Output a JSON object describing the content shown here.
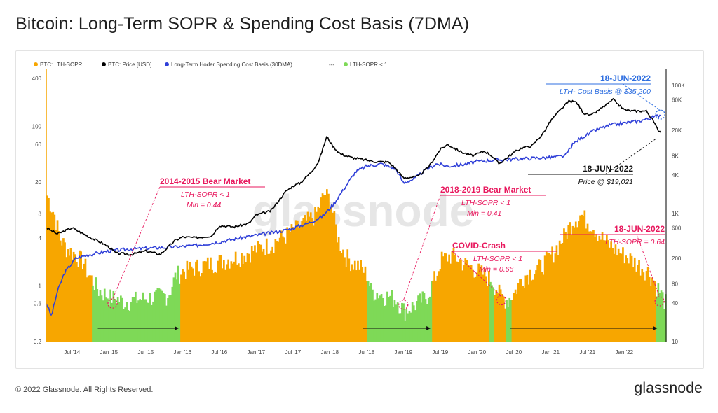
{
  "title": "Bitcoin: Long-Term SOPR & Spending Cost Basis (7DMA)",
  "footer": {
    "copyright": "© 2022 Glassnode. All Rights Reserved.",
    "logo": "glassnode"
  },
  "watermark": "glassnode",
  "colors": {
    "sopr": "#f7a600",
    "sopr_below_one": "#7ed957",
    "price": "#000000",
    "cost_basis": "#2f3fd8",
    "annotation_red": "#e8175d",
    "annotation_blue": "#2f6fe0"
  },
  "chart_data": {
    "type": "area",
    "title": "Bitcoin: Long-Term SOPR & Spending Cost Basis (7DMA)",
    "legend": {
      "placement": "top-left",
      "items": [
        {
          "label": "BTC: LTH-SOPR",
          "color": "#f7a600",
          "marker": "dot"
        },
        {
          "label": "BTC: Price [USD]",
          "color": "#000000",
          "marker": "dot"
        },
        {
          "label": "Long-Term Hoder Spending Cost Basis (30DMA)",
          "color": "#2f3fd8",
          "marker": "dot"
        },
        {
          "label": "---",
          "color": "#555555",
          "marker": "none"
        },
        {
          "label": "LTH-SOPR < 1",
          "color": "#7ed957",
          "marker": "dot"
        }
      ]
    },
    "x_ticks": [
      "Jul '14",
      "Jan '15",
      "Jul '15",
      "Jan '16",
      "Jul '16",
      "Jan '17",
      "Jul '17",
      "Jan '18",
      "Jul '18",
      "Jan '19",
      "Jul '19",
      "Jan '20",
      "Jul '20",
      "Jan '21",
      "Jul '21",
      "Jan '22"
    ],
    "x_range": [
      2014.15,
      2022.55
    ],
    "left_axis": {
      "scale": "log",
      "range": [
        0.2,
        500
      ],
      "ticks": [
        0.2,
        0.6,
        1,
        4,
        8,
        20,
        60,
        100,
        400
      ]
    },
    "right_axis": {
      "scale": "log",
      "range": [
        10,
        170000
      ],
      "ticks": [
        "10",
        "40",
        "80",
        "200",
        "600",
        "1K",
        "4K",
        "8K",
        "20K",
        "60K",
        "100K"
      ]
    },
    "grid": false,
    "series": [
      {
        "name": "BTC: LTH-SOPR",
        "type": "area",
        "axis": "left",
        "x": [
          2014.15,
          2014.25,
          2014.33,
          2014.42,
          2014.55,
          2014.65,
          2014.7,
          2014.85,
          2015.0,
          2015.2,
          2015.4,
          2015.6,
          2015.8,
          2015.9,
          2016.0,
          2016.2,
          2016.4,
          2016.6,
          2016.8,
          2017.0,
          2017.2,
          2017.4,
          2017.6,
          2017.8,
          2017.92,
          2018.0,
          2018.1,
          2018.2,
          2018.3,
          2018.4,
          2018.5,
          2018.55,
          2018.7,
          2018.9,
          2019.0,
          2019.15,
          2019.3,
          2019.45,
          2019.5,
          2019.65,
          2019.8,
          2019.95,
          2020.1,
          2020.2,
          2020.3,
          2020.4,
          2020.5,
          2020.6,
          2020.7,
          2020.85,
          2021.0,
          2021.15,
          2021.3,
          2021.4,
          2021.55,
          2021.7,
          2021.85,
          2022.0,
          2022.15,
          2022.3,
          2022.4,
          2022.46,
          2022.55
        ],
        "y": [
          14,
          8,
          4,
          3,
          2.5,
          2,
          1.5,
          0.9,
          0.75,
          0.65,
          0.7,
          0.75,
          0.8,
          1.4,
          1.6,
          1.8,
          2.0,
          2.2,
          2.5,
          3.0,
          3.5,
          4.5,
          6,
          8,
          15,
          12,
          4,
          2.5,
          2.0,
          1.8,
          1.4,
          0.9,
          0.8,
          0.7,
          0.5,
          0.6,
          0.75,
          1.5,
          2.2,
          2.5,
          2.0,
          1.7,
          1.4,
          1.2,
          0.8,
          0.68,
          0.85,
          1.3,
          1.5,
          1.8,
          2.5,
          4,
          7,
          8,
          6,
          4,
          3,
          2.5,
          2.0,
          1.6,
          1.2,
          0.9,
          0.64
        ],
        "green_ranges": [
          [
            2014.75,
            2015.95
          ],
          [
            2018.5,
            2019.38
          ],
          [
            2020.15,
            2020.22
          ],
          [
            2020.38,
            2020.45
          ],
          [
            2022.42,
            2022.55
          ]
        ]
      },
      {
        "name": "BTC: Price [USD]",
        "type": "line",
        "axis": "right",
        "x": [
          2014.15,
          2014.3,
          2014.5,
          2014.7,
          2014.9,
          2015.0,
          2015.1,
          2015.3,
          2015.5,
          2015.7,
          2015.9,
          2016.0,
          2016.2,
          2016.4,
          2016.5,
          2016.7,
          2016.9,
          2017.0,
          2017.2,
          2017.4,
          2017.5,
          2017.6,
          2017.75,
          2017.85,
          2017.96,
          2018.05,
          2018.15,
          2018.3,
          2018.45,
          2018.6,
          2018.8,
          2018.9,
          2019.0,
          2019.2,
          2019.35,
          2019.5,
          2019.6,
          2019.8,
          2019.95,
          2020.1,
          2020.2,
          2020.3,
          2020.5,
          2020.6,
          2020.75,
          2020.9,
          2021.0,
          2021.1,
          2021.25,
          2021.35,
          2021.45,
          2021.55,
          2021.7,
          2021.85,
          2022.0,
          2022.1,
          2022.3,
          2022.38,
          2022.46,
          2022.5
        ],
        "y": [
          600,
          480,
          600,
          450,
          350,
          300,
          240,
          230,
          260,
          230,
          380,
          430,
          420,
          450,
          650,
          620,
          700,
          950,
          1100,
          2200,
          2700,
          3000,
          4500,
          6500,
          16000,
          11000,
          8500,
          7500,
          7000,
          6500,
          6400,
          5000,
          3600,
          3800,
          5500,
          10000,
          12000,
          9000,
          8000,
          9500,
          8000,
          6000,
          9000,
          10500,
          11500,
          18000,
          28000,
          38000,
          57000,
          55000,
          37000,
          34000,
          45000,
          60000,
          42000,
          40000,
          40000,
          30000,
          20000,
          19021
        ]
      },
      {
        "name": "Long-Term Hoder Spending Cost Basis (30DMA)",
        "type": "line",
        "axis": "right",
        "x": [
          2014.15,
          2014.22,
          2014.3,
          2014.4,
          2014.55,
          2014.75,
          2015.0,
          2015.3,
          2015.6,
          2015.9,
          2016.2,
          2016.5,
          2016.8,
          2017.1,
          2017.4,
          2017.7,
          2017.9,
          2018.05,
          2018.2,
          2018.35,
          2018.5,
          2018.7,
          2018.9,
          2019.0,
          2019.15,
          2019.3,
          2019.45,
          2019.6,
          2019.8,
          2020.0,
          2020.2,
          2020.4,
          2020.6,
          2020.8,
          2021.0,
          2021.2,
          2021.3,
          2021.4,
          2021.5,
          2021.6,
          2021.8,
          2022.0,
          2022.2,
          2022.3,
          2022.4,
          2022.46,
          2022.5
        ],
        "y": [
          40,
          25,
          60,
          120,
          200,
          230,
          260,
          280,
          290,
          300,
          320,
          360,
          420,
          480,
          550,
          700,
          900,
          1400,
          2500,
          4500,
          5500,
          6000,
          5000,
          3000,
          3500,
          4800,
          6000,
          5500,
          5800,
          6500,
          6800,
          7000,
          7200,
          7400,
          7500,
          8000,
          12000,
          15000,
          17000,
          20000,
          24000,
          26000,
          28000,
          30000,
          32000,
          34000,
          35200
        ]
      }
    ],
    "markers": [
      {
        "label": "2014-2015 Bear Market",
        "x": 2015.05,
        "y": 0.6
      },
      {
        "label": "2018-2019 Bear Market",
        "x": 2019.0,
        "y": 0.58
      },
      {
        "label": "COVID-Crash",
        "x": 2020.33,
        "y": 0.66
      },
      {
        "label": "18-JUN-2022",
        "x": 2022.48,
        "y": 0.64
      },
      {
        "label": "18-JUN-2022",
        "x": 2022.49,
        "y_right": 35200
      }
    ],
    "periods": [
      {
        "x0": 2014.85,
        "x1": 2015.95
      },
      {
        "x0": 2018.45,
        "x1": 2019.37
      },
      {
        "x0": 2020.45,
        "x1": 2022.45
      }
    ],
    "annotations": [
      {
        "title": "2014-2015 Bear Market",
        "line1": "LTH-SOPR < 1",
        "line2": "Min = 0.44",
        "color": "#e8175d"
      },
      {
        "title": "2018-2019 Bear Market",
        "line1": "LTH-SOPR < 1",
        "line2": "Min = 0.41",
        "color": "#e8175d"
      },
      {
        "title": "COVID-Crash",
        "line1": "LTH-SOPR < 1",
        "line2": "Min = 0.66",
        "color": "#e8175d"
      },
      {
        "title": "18-JUN-2022",
        "line1": "LTH-SOPR = 0.64",
        "color": "#e8175d"
      },
      {
        "title": "18-JUN-2022",
        "line1": "LTH- Cost Basis @ $35,200",
        "color": "#2f6fe0"
      },
      {
        "title": "18-JUN-2022",
        "line1": "Price @ $19,021",
        "color": "#111111"
      }
    ]
  }
}
